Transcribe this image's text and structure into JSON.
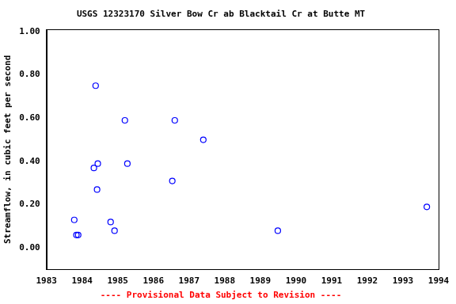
{
  "chart_data": {
    "type": "scatter",
    "title": "USGS 12323170 Silver Bow Cr ab Blacktail Cr at Butte MT",
    "y_label": "Streamflow, in cubic feet per second",
    "footnote": "---- Provisional Data Subject to Revision ----",
    "x": [
      1983.78,
      1983.84,
      1983.89,
      1984.38,
      1984.33,
      1984.44,
      1984.42,
      1984.8,
      1984.91,
      1985.2,
      1985.27,
      1986.53,
      1986.6,
      1987.4,
      1989.49,
      1993.67
    ],
    "values": [
      0.13,
      0.06,
      0.06,
      0.75,
      0.37,
      0.39,
      0.27,
      0.12,
      0.08,
      0.59,
      0.39,
      0.31,
      0.59,
      0.5,
      0.08,
      0.19
    ],
    "color": "#0000ff",
    "marker": "circle-open",
    "grid": false,
    "xlim": [
      1983,
      1994
    ],
    "xticks": [
      1983,
      1984,
      1985,
      1986,
      1987,
      1988,
      1989,
      1990,
      1991,
      1992,
      1993,
      1994
    ],
    "ylim": [
      -0.1,
      1.01
    ],
    "yticks": [
      {
        "value": 0,
        "label": "0.00"
      },
      {
        "value": 0.2,
        "label": "0.20"
      },
      {
        "value": 0.4,
        "label": "0.40"
      },
      {
        "value": 0.6,
        "label": "0.60"
      },
      {
        "value": 0.8,
        "label": "0.80"
      },
      {
        "value": 1.0,
        "label": "1.00"
      }
    ]
  }
}
